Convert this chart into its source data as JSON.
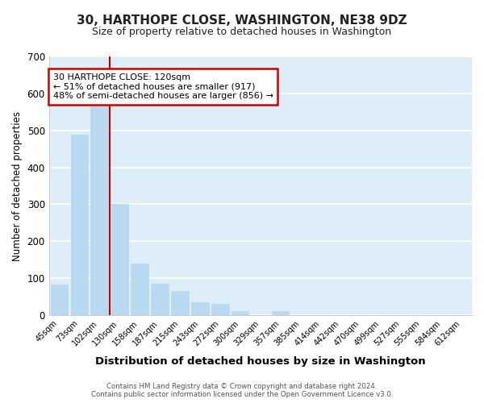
{
  "title": "30, HARTHOPE CLOSE, WASHINGTON, NE38 9DZ",
  "subtitle": "Size of property relative to detached houses in Washington",
  "xlabel": "Distribution of detached houses by size in Washington",
  "ylabel": "Number of detached properties",
  "bar_color": "#b8d9f0",
  "bar_edge_color": "#b8d9f0",
  "grid_color": "#ffffff",
  "bg_color": "#ddeef8",
  "fig_bg_color": "#ffffff",
  "categories": [
    "45sqm",
    "73sqm",
    "102sqm",
    "130sqm",
    "158sqm",
    "187sqm",
    "215sqm",
    "243sqm",
    "272sqm",
    "300sqm",
    "329sqm",
    "357sqm",
    "385sqm",
    "414sqm",
    "442sqm",
    "470sqm",
    "499sqm",
    "527sqm",
    "555sqm",
    "584sqm",
    "612sqm"
  ],
  "values": [
    84,
    488,
    565,
    302,
    140,
    86,
    65,
    36,
    30,
    10,
    0,
    12,
    0,
    0,
    0,
    0,
    0,
    0,
    0,
    0,
    0
  ],
  "ylim": [
    0,
    700
  ],
  "yticks": [
    0,
    100,
    200,
    300,
    400,
    500,
    600,
    700
  ],
  "vline_x_index": 2.5,
  "annotation_title": "30 HARTHOPE CLOSE: 120sqm",
  "annotation_line1": "← 51% of detached houses are smaller (917)",
  "annotation_line2": "48% of semi-detached houses are larger (856) →",
  "annotation_box_color": "#ffffff",
  "annotation_border_color": "#cc0000",
  "vline_color": "#cc0000",
  "footer1": "Contains HM Land Registry data © Crown copyright and database right 2024.",
  "footer2": "Contains public sector information licensed under the Open Government Licence v3.0."
}
